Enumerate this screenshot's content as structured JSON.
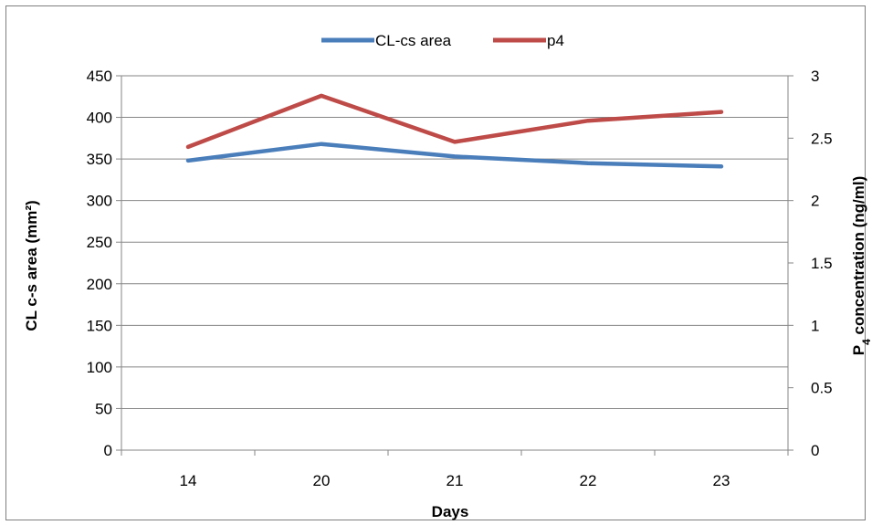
{
  "chart_data": {
    "type": "line",
    "categories": [
      "14",
      "20",
      "21",
      "22",
      "23"
    ],
    "series": [
      {
        "name": "CL-cs area",
        "axis": "left",
        "color": "#4a7ebb",
        "values": [
          348,
          368,
          353,
          345,
          341
        ]
      },
      {
        "name": "p4",
        "axis": "right",
        "color": "#be4b48",
        "values": [
          2.43,
          2.84,
          2.47,
          2.64,
          2.71
        ]
      }
    ],
    "xlabel": "Days",
    "ylabel": "CL c-s area (mm²)",
    "y2label_main": "P",
    "y2label_sub": "4",
    "y2label_rest": " concentration (ng/ml)",
    "ylim": [
      0,
      450
    ],
    "y2lim": [
      0,
      3
    ],
    "yticks": [
      "0",
      "50",
      "100",
      "150",
      "200",
      "250",
      "300",
      "350",
      "400",
      "450"
    ],
    "y2ticks": [
      "0",
      "0.5",
      "1",
      "1.5",
      "2",
      "2.5",
      "3"
    ],
    "grid": true,
    "legend": "top-center"
  }
}
